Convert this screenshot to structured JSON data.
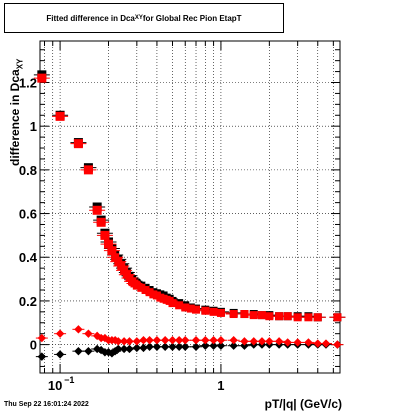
{
  "title": {
    "prefix": "Fitted difference in Dca",
    "subscript": "XY",
    "suffix": " for Global Rec Pion EtapT"
  },
  "timestamp": "Thu Sep 22 16:01:24 2022",
  "chart_data": {
    "type": "scatter",
    "x_scale": "log",
    "xlim": [
      0.075,
      5.5
    ],
    "ylim": [
      -0.13,
      1.39
    ],
    "xlabel": "pT/|q| (GeV/c)",
    "ylabel_prefix": "difference in Dca",
    "ylabel_subscript": "XY",
    "grid": true,
    "x_ticks": [
      {
        "value": 0.1,
        "label": "10",
        "exp": "−1"
      },
      {
        "value": 1,
        "label": "1",
        "exp": ""
      }
    ],
    "y_ticks": [
      {
        "value": 0,
        "label": "0"
      },
      {
        "value": 0.2,
        "label": "0.2"
      },
      {
        "value": 0.4,
        "label": "0.4"
      },
      {
        "value": 0.6,
        "label": "0.6"
      },
      {
        "value": 0.8,
        "label": "0.8"
      },
      {
        "value": 1,
        "label": "1"
      },
      {
        "value": 1.2,
        "label": "1.2"
      }
    ],
    "colors": {
      "red": "#ff0000",
      "black": "#000000"
    },
    "series": [
      {
        "marker": "square",
        "color": "black",
        "x": [
          0.077,
          0.1,
          0.13,
          0.15,
          0.17,
          0.18,
          0.19,
          0.2,
          0.21,
          0.22,
          0.23,
          0.24,
          0.25,
          0.26,
          0.27,
          0.28,
          0.29,
          0.3,
          0.32,
          0.34,
          0.36,
          0.38,
          0.4,
          0.42,
          0.44,
          0.46,
          0.48,
          0.5,
          0.55,
          0.6,
          0.65,
          0.7,
          0.8,
          0.9,
          1,
          1.2,
          1.4,
          1.6,
          1.8,
          2,
          2.3,
          2.6,
          3,
          3.5,
          4,
          5.3
        ],
        "y": [
          1.235,
          1.05,
          0.925,
          0.81,
          0.63,
          0.57,
          0.51,
          0.47,
          0.44,
          0.41,
          0.39,
          0.37,
          0.35,
          0.33,
          0.315,
          0.3,
          0.29,
          0.28,
          0.27,
          0.26,
          0.25,
          0.24,
          0.235,
          0.23,
          0.225,
          0.215,
          0.21,
          0.2,
          0.19,
          0.18,
          0.17,
          0.165,
          0.16,
          0.155,
          0.15,
          0.145,
          0.14,
          0.14,
          0.135,
          0.135,
          0.13,
          0.13,
          0.13,
          0.13,
          0.125,
          0.125
        ]
      },
      {
        "marker": "square",
        "color": "red",
        "x": [
          0.077,
          0.1,
          0.13,
          0.15,
          0.17,
          0.18,
          0.19,
          0.2,
          0.21,
          0.22,
          0.23,
          0.24,
          0.25,
          0.26,
          0.27,
          0.28,
          0.29,
          0.3,
          0.32,
          0.34,
          0.36,
          0.38,
          0.4,
          0.42,
          0.44,
          0.46,
          0.48,
          0.5,
          0.55,
          0.6,
          0.65,
          0.7,
          0.8,
          0.9,
          1,
          1.2,
          1.4,
          1.6,
          1.8,
          2,
          2.3,
          2.6,
          3,
          3.5,
          4,
          5.3
        ],
        "y": [
          1.22,
          1.045,
          0.92,
          0.8,
          0.615,
          0.56,
          0.5,
          0.46,
          0.43,
          0.4,
          0.38,
          0.36,
          0.34,
          0.32,
          0.305,
          0.29,
          0.28,
          0.27,
          0.26,
          0.25,
          0.24,
          0.23,
          0.225,
          0.215,
          0.21,
          0.205,
          0.2,
          0.19,
          0.18,
          0.17,
          0.165,
          0.16,
          0.155,
          0.15,
          0.145,
          0.14,
          0.14,
          0.135,
          0.135,
          0.13,
          0.13,
          0.13,
          0.125,
          0.125,
          0.125,
          0.125
        ]
      },
      {
        "marker": "diamond",
        "color": "black",
        "x": [
          0.077,
          0.1,
          0.13,
          0.15,
          0.17,
          0.18,
          0.19,
          0.2,
          0.21,
          0.22,
          0.23,
          0.25,
          0.27,
          0.3,
          0.33,
          0.36,
          0.4,
          0.45,
          0.5,
          0.55,
          0.6,
          0.7,
          0.8,
          0.9,
          1,
          1.2,
          1.4,
          1.6,
          1.8,
          2,
          2.3,
          2.6,
          3,
          3.5,
          4,
          4.5,
          5.3
        ],
        "y": [
          -0.055,
          -0.045,
          -0.03,
          -0.03,
          -0.02,
          -0.025,
          -0.035,
          -0.035,
          -0.04,
          -0.03,
          -0.02,
          -0.02,
          -0.02,
          -0.015,
          -0.015,
          -0.01,
          -0.01,
          -0.01,
          -0.01,
          -0.01,
          -0.01,
          -0.01,
          -0.005,
          -0.005,
          -0.005,
          -0.005,
          -0.005,
          0,
          0,
          0,
          0,
          0,
          0,
          0,
          0,
          0,
          0
        ]
      },
      {
        "marker": "diamond",
        "color": "red",
        "x": [
          0.077,
          0.1,
          0.13,
          0.15,
          0.17,
          0.18,
          0.19,
          0.2,
          0.21,
          0.22,
          0.23,
          0.25,
          0.27,
          0.3,
          0.33,
          0.36,
          0.4,
          0.45,
          0.5,
          0.55,
          0.6,
          0.7,
          0.8,
          0.9,
          1,
          1.2,
          1.4,
          1.6,
          1.8,
          2,
          2.3,
          2.6,
          3,
          3.5,
          4,
          4.5,
          5.3
        ],
        "y": [
          0.03,
          0.05,
          0.07,
          0.05,
          0.04,
          0.03,
          0.03,
          0.02,
          0.02,
          0.02,
          0.015,
          0.015,
          0.015,
          0.015,
          0.02,
          0.02,
          0.02,
          0.02,
          0.02,
          0.02,
          0.02,
          0.02,
          0.02,
          0.02,
          0.02,
          0.02,
          0.015,
          0.015,
          0.015,
          0.015,
          0.015,
          0.01,
          0.01,
          0.01,
          0.005,
          0.005,
          0
        ]
      }
    ]
  }
}
